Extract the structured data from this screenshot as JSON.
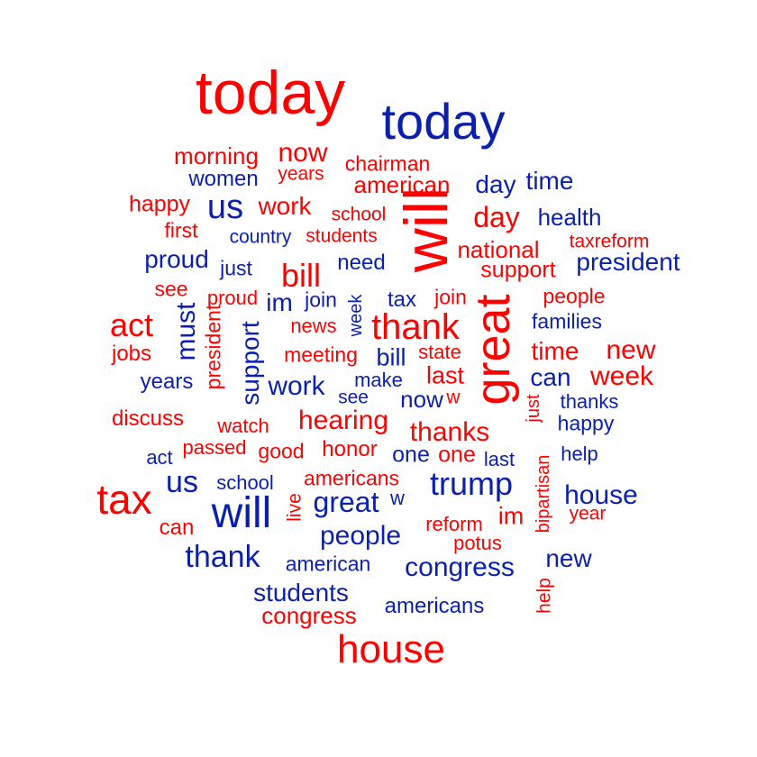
{
  "colors": {
    "red": "#ff0000",
    "blue": "#0a1fae"
  },
  "words": [
    {
      "text": "today",
      "color": "red"
    },
    {
      "text": "today",
      "color": "blue"
    },
    {
      "text": "morning",
      "color": "red"
    },
    {
      "text": "now",
      "color": "red"
    },
    {
      "text": "years",
      "color": "red"
    },
    {
      "text": "chairman",
      "color": "red"
    },
    {
      "text": "women",
      "color": "blue"
    },
    {
      "text": "american",
      "color": "red"
    },
    {
      "text": "day",
      "color": "blue"
    },
    {
      "text": "time",
      "color": "blue"
    },
    {
      "text": "happy",
      "color": "red"
    },
    {
      "text": "us",
      "color": "blue"
    },
    {
      "text": "work",
      "color": "red"
    },
    {
      "text": "school",
      "color": "red"
    },
    {
      "text": "will",
      "color": "red"
    },
    {
      "text": "day",
      "color": "red"
    },
    {
      "text": "health",
      "color": "blue"
    },
    {
      "text": "first",
      "color": "red"
    },
    {
      "text": "country",
      "color": "blue"
    },
    {
      "text": "students",
      "color": "red"
    },
    {
      "text": "national",
      "color": "red"
    },
    {
      "text": "taxreform",
      "color": "red"
    },
    {
      "text": "proud",
      "color": "blue"
    },
    {
      "text": "just",
      "color": "blue"
    },
    {
      "text": "bill",
      "color": "red"
    },
    {
      "text": "need",
      "color": "blue"
    },
    {
      "text": "support",
      "color": "red"
    },
    {
      "text": "president",
      "color": "blue"
    },
    {
      "text": "see",
      "color": "red"
    },
    {
      "text": "proud",
      "color": "red"
    },
    {
      "text": "im",
      "color": "blue"
    },
    {
      "text": "join",
      "color": "blue"
    },
    {
      "text": "week",
      "color": "blue"
    },
    {
      "text": "tax",
      "color": "blue"
    },
    {
      "text": "join",
      "color": "red"
    },
    {
      "text": "great",
      "color": "red"
    },
    {
      "text": "people",
      "color": "red"
    },
    {
      "text": "act",
      "color": "red"
    },
    {
      "text": "must",
      "color": "blue"
    },
    {
      "text": "president",
      "color": "red"
    },
    {
      "text": "news",
      "color": "red"
    },
    {
      "text": "thank",
      "color": "red"
    },
    {
      "text": "families",
      "color": "blue"
    },
    {
      "text": "jobs",
      "color": "red"
    },
    {
      "text": "support",
      "color": "blue"
    },
    {
      "text": "meeting",
      "color": "red"
    },
    {
      "text": "bill",
      "color": "blue"
    },
    {
      "text": "state",
      "color": "red"
    },
    {
      "text": "time",
      "color": "red"
    },
    {
      "text": "new",
      "color": "red"
    },
    {
      "text": "years",
      "color": "blue"
    },
    {
      "text": "work",
      "color": "blue"
    },
    {
      "text": "make",
      "color": "blue"
    },
    {
      "text": "last",
      "color": "red"
    },
    {
      "text": "can",
      "color": "blue"
    },
    {
      "text": "week",
      "color": "red"
    },
    {
      "text": "see",
      "color": "blue"
    },
    {
      "text": "now",
      "color": "blue"
    },
    {
      "text": "w",
      "color": "red"
    },
    {
      "text": "just",
      "color": "red"
    },
    {
      "text": "thanks",
      "color": "blue"
    },
    {
      "text": "discuss",
      "color": "red"
    },
    {
      "text": "watch",
      "color": "red"
    },
    {
      "text": "hearing",
      "color": "red"
    },
    {
      "text": "thanks",
      "color": "red"
    },
    {
      "text": "happy",
      "color": "blue"
    },
    {
      "text": "act",
      "color": "blue"
    },
    {
      "text": "passed",
      "color": "red"
    },
    {
      "text": "good",
      "color": "red"
    },
    {
      "text": "honor",
      "color": "red"
    },
    {
      "text": "one",
      "color": "blue"
    },
    {
      "text": "one",
      "color": "red"
    },
    {
      "text": "last",
      "color": "blue"
    },
    {
      "text": "help",
      "color": "blue"
    },
    {
      "text": "bipartisan",
      "color": "red"
    },
    {
      "text": "tax",
      "color": "red"
    },
    {
      "text": "us",
      "color": "blue"
    },
    {
      "text": "school",
      "color": "blue"
    },
    {
      "text": "americans",
      "color": "red"
    },
    {
      "text": "trump",
      "color": "blue"
    },
    {
      "text": "house",
      "color": "blue"
    },
    {
      "text": "will",
      "color": "blue"
    },
    {
      "text": "live",
      "color": "red"
    },
    {
      "text": "great",
      "color": "blue"
    },
    {
      "text": "w",
      "color": "blue"
    },
    {
      "text": "im",
      "color": "red"
    },
    {
      "text": "year",
      "color": "red"
    },
    {
      "text": "can",
      "color": "red"
    },
    {
      "text": "reform",
      "color": "red"
    },
    {
      "text": "people",
      "color": "blue"
    },
    {
      "text": "potus",
      "color": "red"
    },
    {
      "text": "thank",
      "color": "blue"
    },
    {
      "text": "american",
      "color": "blue"
    },
    {
      "text": "congress",
      "color": "blue"
    },
    {
      "text": "new",
      "color": "blue"
    },
    {
      "text": "help",
      "color": "red"
    },
    {
      "text": "students",
      "color": "blue"
    },
    {
      "text": "americans",
      "color": "blue"
    },
    {
      "text": "congress",
      "color": "red"
    },
    {
      "text": "house",
      "color": "red"
    }
  ]
}
